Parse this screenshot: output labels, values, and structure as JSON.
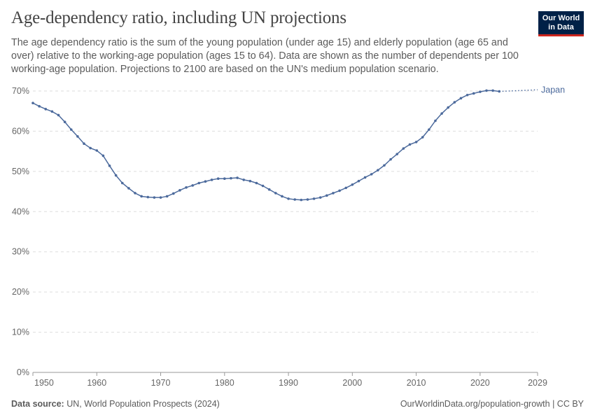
{
  "header": {
    "title": "Age-dependency ratio, including UN projections",
    "subtitle": "The age dependency ratio is the sum of the young population (under age 15) and elderly population (age 65 and over) relative to the working-age population (ages 15 to 64). Data are shown as the number of dependents per 100 working-age population. Projections to 2100 are based on the UN's medium population scenario.",
    "logo_text": "Our World in Data"
  },
  "footer": {
    "source_label": "Data source:",
    "source": "UN, World Population Prospects (2024)",
    "right": "OurWorldinData.org/population-growth | CC BY"
  },
  "chart_data": {
    "type": "line",
    "title": "Age-dependency ratio, including UN projections",
    "xlim": [
      1950,
      2029
    ],
    "ylim": [
      0,
      70
    ],
    "x_ticks": [
      "1950",
      "1960",
      "1970",
      "1980",
      "1990",
      "2000",
      "2010",
      "2020",
      "2029"
    ],
    "y_ticks": [
      "0%",
      "10%",
      "20%",
      "30%",
      "40%",
      "50%",
      "60%",
      "70%"
    ],
    "grid": "horizontal dashed",
    "line_color": "#4c6a9c",
    "series": [
      {
        "name": "Japan",
        "label_placement": "right end",
        "x": [
          1950,
          1951,
          1952,
          1953,
          1954,
          1955,
          1956,
          1957,
          1958,
          1959,
          1960,
          1961,
          1962,
          1963,
          1964,
          1965,
          1966,
          1967,
          1968,
          1969,
          1970,
          1971,
          1972,
          1973,
          1974,
          1975,
          1976,
          1977,
          1978,
          1979,
          1980,
          1981,
          1982,
          1983,
          1984,
          1985,
          1986,
          1987,
          1988,
          1989,
          1990,
          1991,
          1992,
          1993,
          1994,
          1995,
          1996,
          1997,
          1998,
          1999,
          2000,
          2001,
          2002,
          2003,
          2004,
          2005,
          2006,
          2007,
          2008,
          2009,
          2010,
          2011,
          2012,
          2013,
          2014,
          2015,
          2016,
          2017,
          2018,
          2019,
          2020,
          2021,
          2022,
          2023
        ],
        "values": [
          67.0,
          66.2,
          65.5,
          64.9,
          64.0,
          62.3,
          60.4,
          58.7,
          56.9,
          55.8,
          55.2,
          53.9,
          51.4,
          49.0,
          47.1,
          45.8,
          44.6,
          43.8,
          43.6,
          43.5,
          43.5,
          43.8,
          44.5,
          45.3,
          46.0,
          46.5,
          47.1,
          47.5,
          47.9,
          48.2,
          48.2,
          48.3,
          48.4,
          47.9,
          47.6,
          47.1,
          46.4,
          45.5,
          44.6,
          43.8,
          43.2,
          43.0,
          42.9,
          43.0,
          43.2,
          43.5,
          44.0,
          44.6,
          45.2,
          45.9,
          46.7,
          47.6,
          48.5,
          49.3,
          50.3,
          51.5,
          53.0,
          54.3,
          55.7,
          56.7,
          57.3,
          58.5,
          60.4,
          62.6,
          64.4,
          65.9,
          67.2,
          68.2,
          69.0,
          69.4,
          69.8,
          70.1,
          70.1,
          69.9
        ]
      },
      {
        "name": "Japan (projection)",
        "style": "dotted",
        "x": [
          2023,
          2029
        ],
        "values": [
          69.9,
          70.3
        ]
      }
    ]
  }
}
